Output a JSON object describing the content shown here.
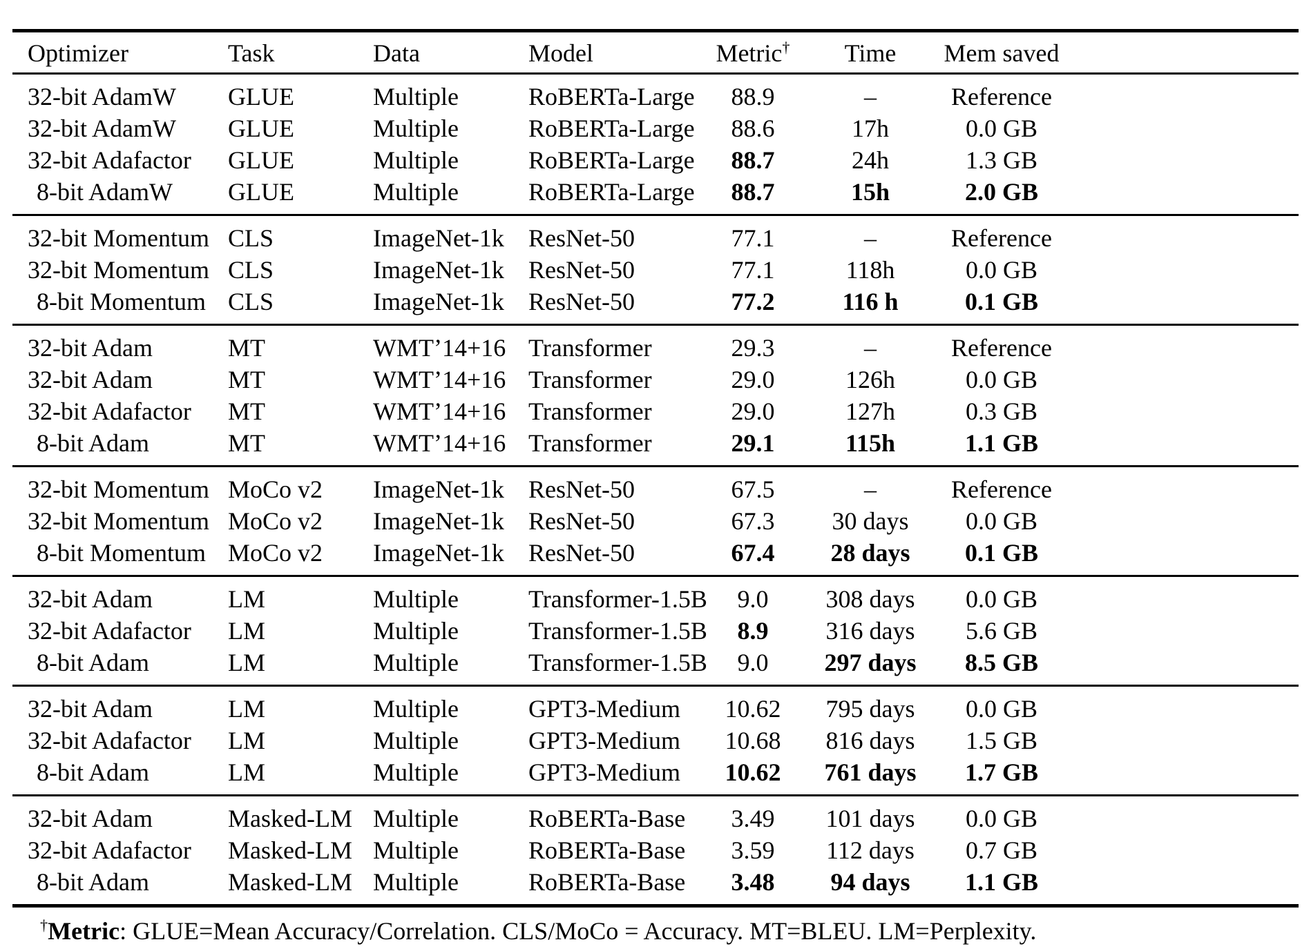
{
  "table": {
    "columns": [
      {
        "key": "optimizer",
        "label": "Optimizer",
        "align": "left"
      },
      {
        "key": "task",
        "label": "Task",
        "align": "left"
      },
      {
        "key": "data",
        "label": "Data",
        "align": "left"
      },
      {
        "key": "model",
        "label": "Model",
        "align": "left"
      },
      {
        "key": "metric",
        "label": "Metric",
        "sup": "†",
        "align": "center"
      },
      {
        "key": "time",
        "label": "Time",
        "align": "center"
      },
      {
        "key": "mem",
        "label": "Mem saved",
        "align": "center"
      }
    ],
    "groups": [
      {
        "rows": [
          {
            "cells": [
              {
                "t": "32-bit AdamW"
              },
              {
                "t": "GLUE"
              },
              {
                "t": "Multiple"
              },
              {
                "t": "RoBERTa-Large"
              },
              {
                "t": "88.9"
              },
              {
                "t": "–"
              },
              {
                "t": "Reference"
              }
            ]
          },
          {
            "cells": [
              {
                "t": "32-bit AdamW"
              },
              {
                "t": "GLUE"
              },
              {
                "t": "Multiple"
              },
              {
                "t": "RoBERTa-Large"
              },
              {
                "t": "88.6"
              },
              {
                "t": "17h"
              },
              {
                "t": "0.0 GB"
              }
            ]
          },
          {
            "cells": [
              {
                "t": "32-bit Adafactor"
              },
              {
                "t": "GLUE"
              },
              {
                "t": "Multiple"
              },
              {
                "t": "RoBERTa-Large"
              },
              {
                "t": "88.7",
                "b": true
              },
              {
                "t": "24h"
              },
              {
                "t": "1.3 GB"
              }
            ]
          },
          {
            "cells": [
              {
                "t": "8-bit AdamW"
              },
              {
                "t": "GLUE"
              },
              {
                "t": "Multiple"
              },
              {
                "t": "RoBERTa-Large"
              },
              {
                "t": "88.7",
                "b": true
              },
              {
                "t": "15h",
                "b": true
              },
              {
                "t": "2.0 GB",
                "b": true
              }
            ]
          }
        ]
      },
      {
        "rows": [
          {
            "cells": [
              {
                "t": "32-bit Momentum"
              },
              {
                "t": "CLS"
              },
              {
                "t": "ImageNet-1k"
              },
              {
                "t": "ResNet-50"
              },
              {
                "t": "77.1"
              },
              {
                "t": "–"
              },
              {
                "t": "Reference"
              }
            ]
          },
          {
            "cells": [
              {
                "t": "32-bit Momentum"
              },
              {
                "t": "CLS"
              },
              {
                "t": "ImageNet-1k"
              },
              {
                "t": "ResNet-50"
              },
              {
                "t": "77.1"
              },
              {
                "t": "118h"
              },
              {
                "t": "0.0 GB"
              }
            ]
          },
          {
            "cells": [
              {
                "t": "8-bit Momentum"
              },
              {
                "t": "CLS"
              },
              {
                "t": "ImageNet-1k"
              },
              {
                "t": "ResNet-50"
              },
              {
                "t": "77.2",
                "b": true
              },
              {
                "t": "116 h",
                "b": true
              },
              {
                "t": "0.1 GB",
                "b": true
              }
            ]
          }
        ]
      },
      {
        "rows": [
          {
            "cells": [
              {
                "t": "32-bit Adam"
              },
              {
                "t": "MT"
              },
              {
                "t": "WMT’14+16"
              },
              {
                "t": "Transformer"
              },
              {
                "t": "29.3"
              },
              {
                "t": "–"
              },
              {
                "t": "Reference"
              }
            ]
          },
          {
            "cells": [
              {
                "t": "32-bit Adam"
              },
              {
                "t": "MT"
              },
              {
                "t": "WMT’14+16"
              },
              {
                "t": "Transformer"
              },
              {
                "t": "29.0"
              },
              {
                "t": "126h"
              },
              {
                "t": "0.0 GB"
              }
            ]
          },
          {
            "cells": [
              {
                "t": "32-bit Adafactor"
              },
              {
                "t": "MT"
              },
              {
                "t": "WMT’14+16"
              },
              {
                "t": "Transformer"
              },
              {
                "t": "29.0"
              },
              {
                "t": "127h"
              },
              {
                "t": "0.3 GB"
              }
            ]
          },
          {
            "cells": [
              {
                "t": "8-bit Adam"
              },
              {
                "t": "MT"
              },
              {
                "t": "WMT’14+16"
              },
              {
                "t": "Transformer"
              },
              {
                "t": "29.1",
                "b": true
              },
              {
                "t": "115h",
                "b": true
              },
              {
                "t": "1.1 GB",
                "b": true
              }
            ]
          }
        ]
      },
      {
        "rows": [
          {
            "cells": [
              {
                "t": "32-bit Momentum"
              },
              {
                "t": "MoCo v2"
              },
              {
                "t": "ImageNet-1k"
              },
              {
                "t": "ResNet-50"
              },
              {
                "t": "67.5"
              },
              {
                "t": "–"
              },
              {
                "t": "Reference"
              }
            ]
          },
          {
            "cells": [
              {
                "t": "32-bit Momentum"
              },
              {
                "t": "MoCo v2"
              },
              {
                "t": "ImageNet-1k"
              },
              {
                "t": "ResNet-50"
              },
              {
                "t": "67.3"
              },
              {
                "t": "30 days"
              },
              {
                "t": "0.0 GB"
              }
            ]
          },
          {
            "cells": [
              {
                "t": "8-bit Momentum"
              },
              {
                "t": "MoCo v2"
              },
              {
                "t": "ImageNet-1k"
              },
              {
                "t": "ResNet-50"
              },
              {
                "t": "67.4",
                "b": true
              },
              {
                "t": "28 days",
                "b": true
              },
              {
                "t": "0.1 GB",
                "b": true
              }
            ]
          }
        ]
      },
      {
        "rows": [
          {
            "cells": [
              {
                "t": "32-bit Adam"
              },
              {
                "t": "LM"
              },
              {
                "t": "Multiple"
              },
              {
                "t": "Transformer-1.5B"
              },
              {
                "t": "9.0"
              },
              {
                "t": "308 days"
              },
              {
                "t": "0.0 GB"
              }
            ]
          },
          {
            "cells": [
              {
                "t": "32-bit Adafactor"
              },
              {
                "t": "LM"
              },
              {
                "t": "Multiple"
              },
              {
                "t": "Transformer-1.5B"
              },
              {
                "t": "8.9",
                "b": true
              },
              {
                "t": "316 days"
              },
              {
                "t": "5.6 GB"
              }
            ]
          },
          {
            "cells": [
              {
                "t": "8-bit Adam"
              },
              {
                "t": "LM"
              },
              {
                "t": "Multiple"
              },
              {
                "t": "Transformer-1.5B"
              },
              {
                "t": "9.0"
              },
              {
                "t": "297 days",
                "b": true
              },
              {
                "t": "8.5 GB",
                "b": true
              }
            ]
          }
        ]
      },
      {
        "rows": [
          {
            "cells": [
              {
                "t": "32-bit Adam"
              },
              {
                "t": "LM"
              },
              {
                "t": "Multiple"
              },
              {
                "t": "GPT3-Medium"
              },
              {
                "t": "10.62"
              },
              {
                "t": "795 days"
              },
              {
                "t": "0.0 GB"
              }
            ]
          },
          {
            "cells": [
              {
                "t": "32-bit Adafactor"
              },
              {
                "t": "LM"
              },
              {
                "t": "Multiple"
              },
              {
                "t": "GPT3-Medium"
              },
              {
                "t": "10.68"
              },
              {
                "t": "816 days"
              },
              {
                "t": "1.5 GB"
              }
            ]
          },
          {
            "cells": [
              {
                "t": "8-bit Adam"
              },
              {
                "t": "LM"
              },
              {
                "t": "Multiple"
              },
              {
                "t": "GPT3-Medium"
              },
              {
                "t": "10.62",
                "b": true
              },
              {
                "t": "761 days",
                "b": true
              },
              {
                "t": "1.7 GB",
                "b": true
              }
            ]
          }
        ]
      },
      {
        "rows": [
          {
            "cells": [
              {
                "t": "32-bit Adam"
              },
              {
                "t": "Masked-LM"
              },
              {
                "t": "Multiple"
              },
              {
                "t": "RoBERTa-Base"
              },
              {
                "t": "3.49"
              },
              {
                "t": "101 days"
              },
              {
                "t": "0.0 GB"
              }
            ]
          },
          {
            "cells": [
              {
                "t": "32-bit Adafactor"
              },
              {
                "t": "Masked-LM"
              },
              {
                "t": "Multiple"
              },
              {
                "t": "RoBERTa-Base"
              },
              {
                "t": "3.59"
              },
              {
                "t": "112 days"
              },
              {
                "t": "0.7 GB"
              }
            ]
          },
          {
            "cells": [
              {
                "t": "8-bit Adam"
              },
              {
                "t": "Masked-LM"
              },
              {
                "t": "Multiple"
              },
              {
                "t": "RoBERTa-Base"
              },
              {
                "t": "3.48",
                "b": true
              },
              {
                "t": "94 days",
                "b": true
              },
              {
                "t": "1.1 GB",
                "b": true
              }
            ]
          }
        ]
      }
    ],
    "footnote": {
      "dagger": "†",
      "label": "Metric",
      "text": ": GLUE=Mean Accuracy/Correlation. CLS/MoCo = Accuracy. MT=BLEU. LM=Perplexity."
    }
  }
}
